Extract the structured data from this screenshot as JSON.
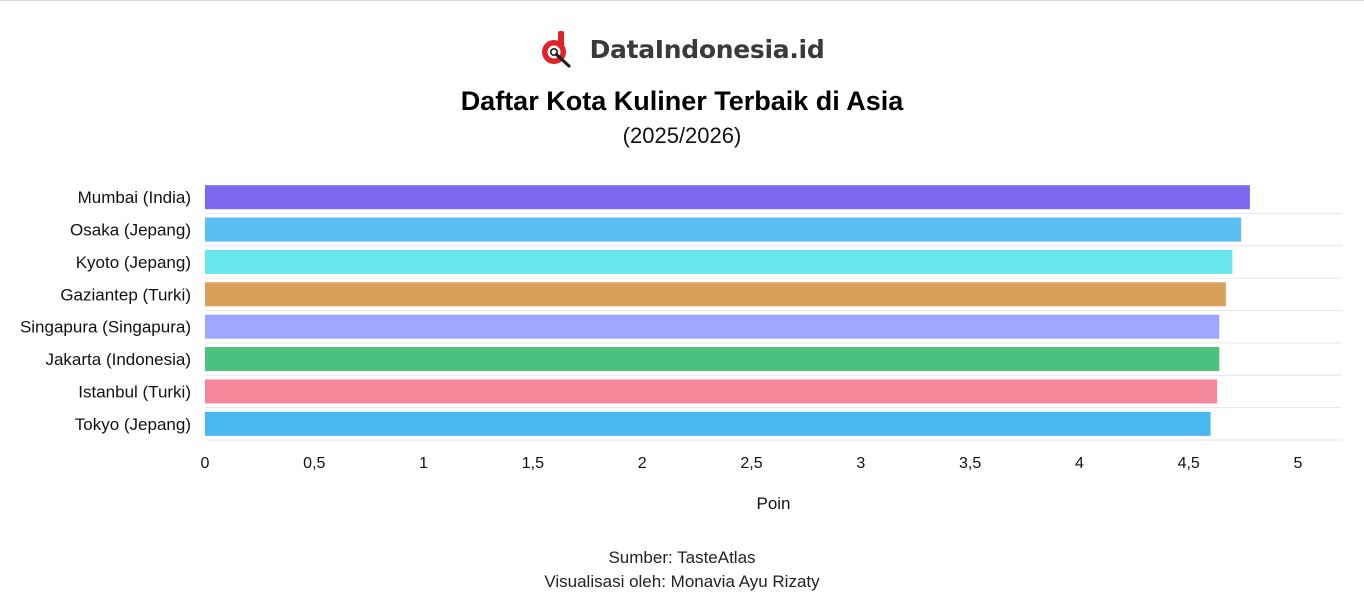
{
  "brand": {
    "name": "DataIndonesia.id",
    "logo_icon": "dataindonesia-logo-icon",
    "logo_colors": [
      "#e02328",
      "#1f1f1f"
    ]
  },
  "header": {
    "title": "Daftar Kota Kuliner Terbaik di Asia",
    "subtitle": "(2025/2026)"
  },
  "chart_data": {
    "type": "bar",
    "orientation": "horizontal",
    "title": "Daftar Kota Kuliner Terbaik di Asia",
    "subtitle": "(2025/2026)",
    "xlabel": "Poin",
    "ylabel": "",
    "xlim": [
      0,
      5.2
    ],
    "x_ticks": [
      0,
      0.5,
      1,
      1.5,
      2,
      2.5,
      3,
      3.5,
      4,
      4.5,
      5
    ],
    "x_tick_labels": [
      "0",
      "0,5",
      "1",
      "1,5",
      "2",
      "2,5",
      "3",
      "3,5",
      "4",
      "4,5",
      "5"
    ],
    "grid": true,
    "categories": [
      "Mumbai (India)",
      "Osaka (Jepang)",
      "Kyoto (Jepang)",
      "Gaziantep (Turki)",
      "Singapura (Singapura)",
      "Jakarta (Indonesia)",
      "Istanbul (Turki)",
      "Tokyo (Jepang)"
    ],
    "values": [
      4.78,
      4.74,
      4.7,
      4.67,
      4.64,
      4.64,
      4.63,
      4.6
    ],
    "colors": [
      "#7b68ee",
      "#5bbff2",
      "#67e6ec",
      "#d9a05a",
      "#9fa6ff",
      "#4cc17e",
      "#f5879c",
      "#49b8f0"
    ]
  },
  "footer": {
    "source": "Sumber: TasteAtlas",
    "credit": "Visualisasi oleh: Monavia Ayu Rizaty"
  }
}
